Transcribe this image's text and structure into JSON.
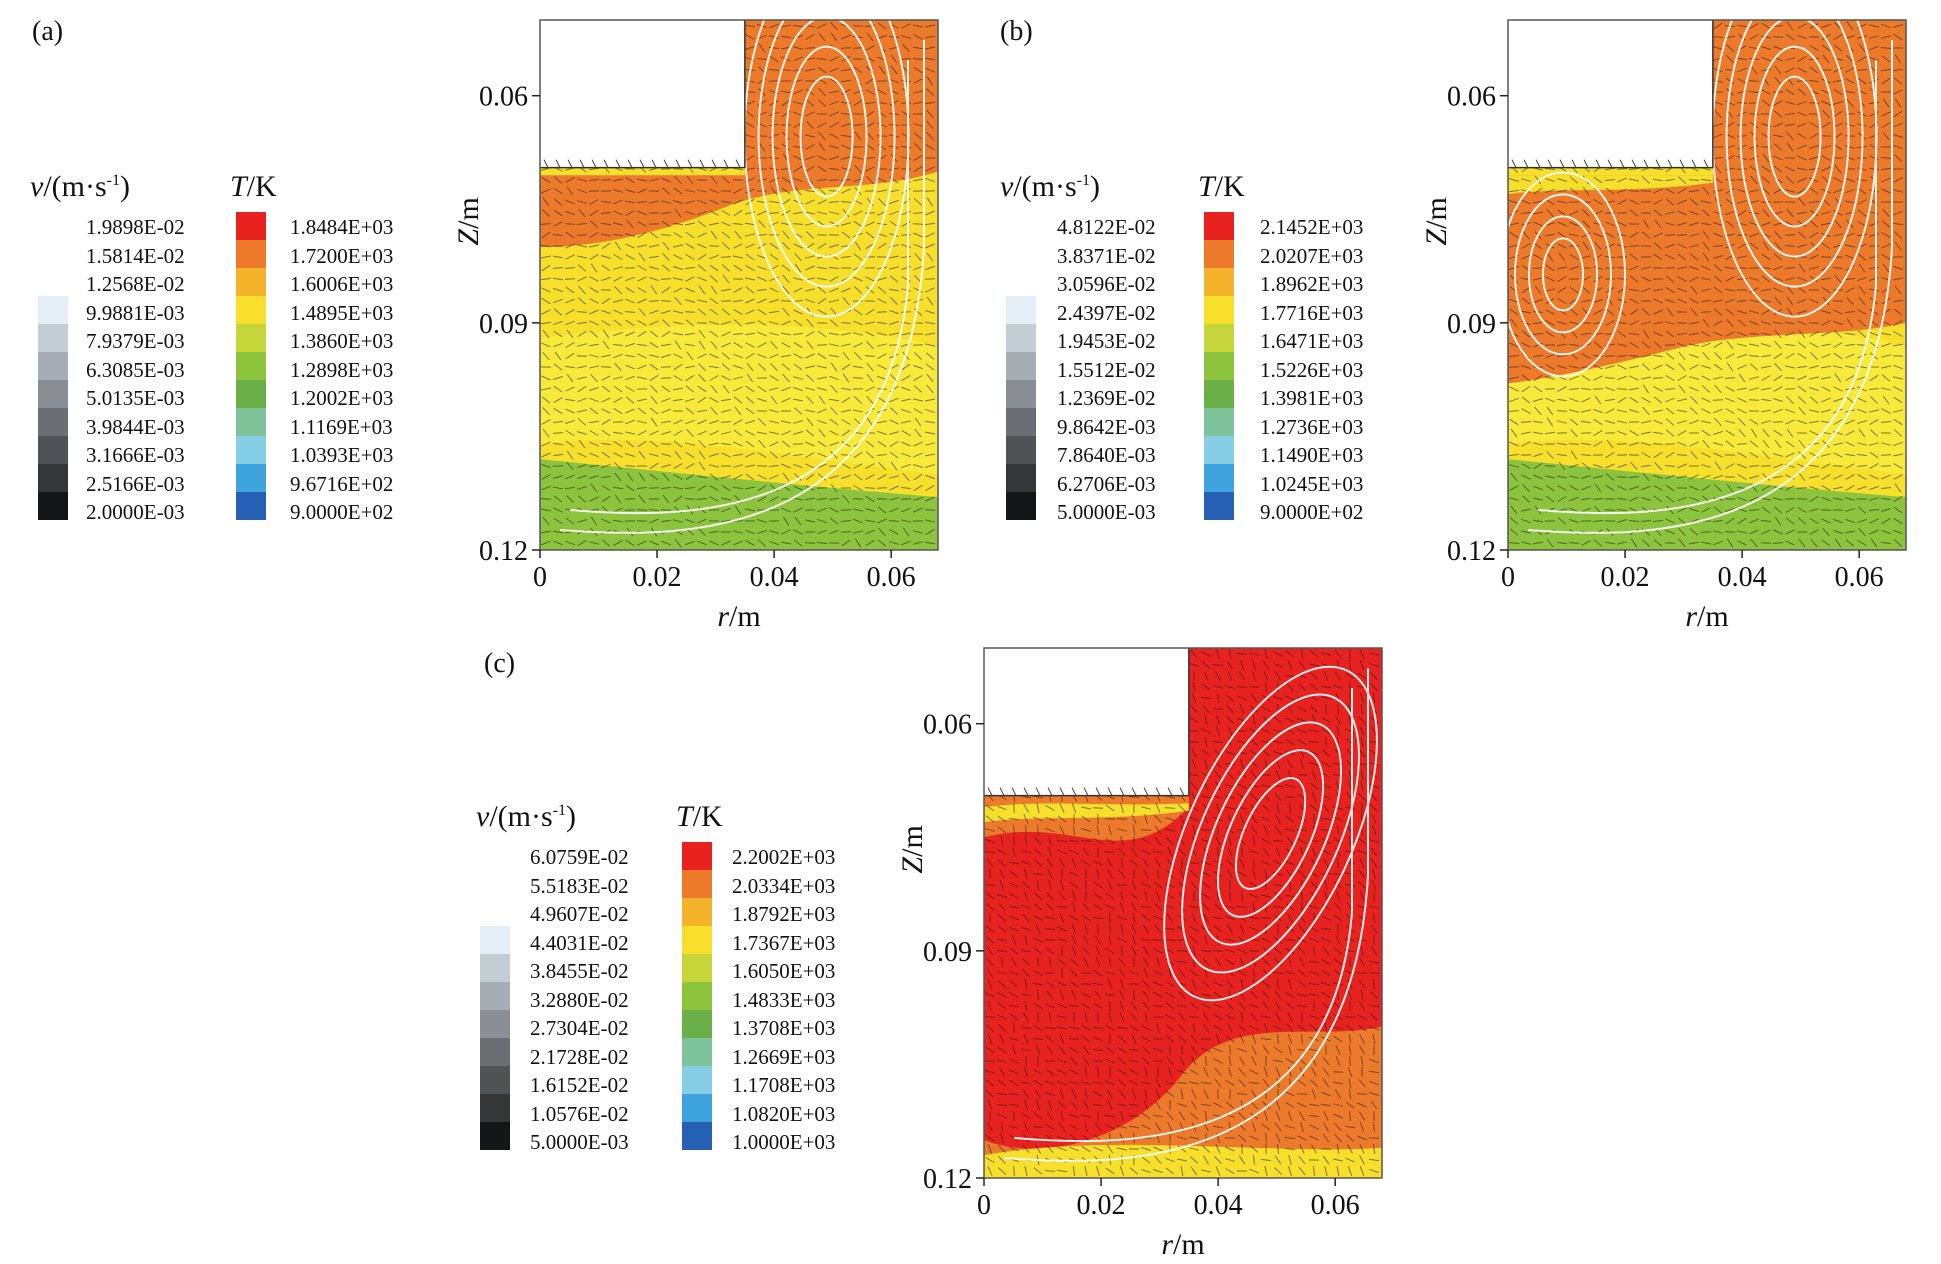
{
  "chart_data": [
    {
      "type": "heatmap",
      "panel_label": "(a)",
      "xlabel": {
        "italic": "r",
        "rest": "/m"
      },
      "ylabel": {
        "italic": "Z",
        "rest": "/m"
      },
      "xticks": [
        "0",
        "0.02",
        "0.04",
        "0.06"
      ],
      "yticks": [
        "0.06",
        "0.09",
        "0.12"
      ],
      "xlim": [
        0,
        0.068
      ],
      "ylim": [
        0.12,
        0.05
      ],
      "velocity_legend": {
        "title_italic": "v",
        "title_rest": "/(m·s",
        "title_sup": "-1",
        "title_end": ")",
        "values": [
          "1.9898E-02",
          "1.5814E-02",
          "1.2568E-02",
          "9.9881E-03",
          "7.9379E-03",
          "6.3085E-03",
          "5.0135E-03",
          "3.9844E-03",
          "3.1666E-03",
          "2.5166E-03",
          "2.0000E-03"
        ]
      },
      "temperature_legend": {
        "title_italic": "T",
        "title_rest": "/K",
        "values": [
          "1.8484E+03",
          "1.7200E+03",
          "1.6006E+03",
          "1.4895E+03",
          "1.3860E+03",
          "1.2898E+03",
          "1.2002E+03",
          "1.1169E+03",
          "1.0393E+03",
          "9.6716E+02",
          "9.0000E+02"
        ]
      },
      "dominant_field": "orange top, yellow middle, green bottom"
    },
    {
      "type": "heatmap",
      "panel_label": "(b)",
      "xlabel": {
        "italic": "r",
        "rest": "/m"
      },
      "ylabel": {
        "italic": "Z",
        "rest": "/m"
      },
      "xticks": [
        "0",
        "0.02",
        "0.04",
        "0.06"
      ],
      "yticks": [
        "0.06",
        "0.09",
        "0.12"
      ],
      "xlim": [
        0,
        0.068
      ],
      "ylim": [
        0.12,
        0.05
      ],
      "velocity_legend": {
        "title_italic": "v",
        "title_rest": "/(m·s",
        "title_sup": "-1",
        "title_end": ")",
        "values": [
          "4.8122E-02",
          "3.8371E-02",
          "3.0596E-02",
          "2.4397E-02",
          "1.9453E-02",
          "1.5512E-02",
          "1.2369E-02",
          "9.8642E-03",
          "7.8640E-03",
          "6.2706E-03",
          "5.0000E-03"
        ]
      },
      "temperature_legend": {
        "title_italic": "T",
        "title_rest": "/K",
        "values": [
          "2.1452E+03",
          "2.0207E+03",
          "1.8962E+03",
          "1.7716E+03",
          "1.6471E+03",
          "1.5226E+03",
          "1.3981E+03",
          "1.2736E+03",
          "1.1490E+03",
          "1.0245E+03",
          "9.0000E+02"
        ]
      },
      "dominant_field": "orange top, yellow middle, green bottom"
    },
    {
      "type": "heatmap",
      "panel_label": "(c)",
      "xlabel": {
        "italic": "r",
        "rest": "/m"
      },
      "ylabel": {
        "italic": "Z",
        "rest": "/m"
      },
      "xticks": [
        "0",
        "0.02",
        "0.04",
        "0.06"
      ],
      "yticks": [
        "0.06",
        "0.09",
        "0.12"
      ],
      "xlim": [
        0,
        0.068
      ],
      "ylim": [
        0.12,
        0.05
      ],
      "velocity_legend": {
        "title_italic": "v",
        "title_rest": "/(m·s",
        "title_sup": "-1",
        "title_end": ")",
        "values": [
          "6.0759E-02",
          "5.5183E-02",
          "4.9607E-02",
          "4.4031E-02",
          "3.8455E-02",
          "3.2880E-02",
          "2.7304E-02",
          "2.1728E-02",
          "1.6152E-02",
          "1.0576E-02",
          "5.0000E-03"
        ]
      },
      "temperature_legend": {
        "title_italic": "T",
        "title_rest": "/K",
        "values": [
          "2.2002E+03",
          "2.0334E+03",
          "1.8792E+03",
          "1.7367E+03",
          "1.6050E+03",
          "1.4833E+03",
          "1.3708E+03",
          "1.2669E+03",
          "1.1708E+03",
          "1.0820E+03",
          "1.0000E+03"
        ]
      },
      "dominant_field": "red core, orange surroundings, yellow bottom"
    }
  ],
  "colors": {
    "temperature_scale": [
      "#e8231f",
      "#ec7a2a",
      "#f4b32a",
      "#f7df2c",
      "#c6d53a",
      "#8cc43e",
      "#6aaf47",
      "#7fc39a",
      "#86cde6",
      "#3fa4de",
      "#2560b4"
    ],
    "velocity_scale": [
      "#ffffff",
      "#ffffff",
      "#ffffff",
      "#e3eef6",
      "#c4ccd4",
      "#a6adb4",
      "#8a8f95",
      "#6b6f74",
      "#505356",
      "#343638",
      "#151617"
    ]
  }
}
